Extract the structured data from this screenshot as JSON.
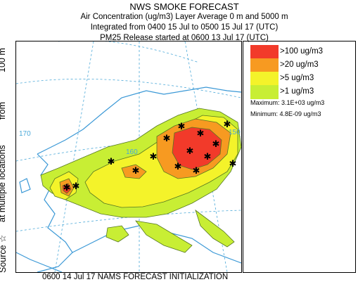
{
  "header": {
    "title": "NWS SMOKE FORECAST",
    "line1": "Air Concentration (ug/m3) Layer Average    0 m and  5000 m",
    "line2": "Integrated from 0400 15 Jul to 0500 15 Jul 17 (UTC)",
    "line3": "PM25 Release started at 0600 13 Jul 17 (UTC)"
  },
  "side_label": {
    "source": "Source ☆",
    "locations": "at multiple locations",
    "from": "from",
    "height": "100 m"
  },
  "legend": {
    "items": [
      {
        "label": ">100 ug/m3",
        "color": "#f23a2a"
      },
      {
        "label": ">20 ug/m3",
        "color": "#f79a21"
      },
      {
        "label": ">5 ug/m3",
        "color": "#f4f32a"
      },
      {
        "label": ">1 ug/m3",
        "color": "#c8ee34"
      }
    ],
    "maximum": "Maximum: 3.1E+03 ug/m3",
    "minimum": "Minimum: 4.8E-09 ug/m3"
  },
  "map": {
    "lon_labels": [
      "170",
      "160",
      "150"
    ],
    "contour_color": "#557722",
    "coast_color": "#3a98d6",
    "grid_color": "#4aa8d8"
  },
  "footer": "0600 14 Jul 17 NAMS FORECAST INITIALIZATION"
}
